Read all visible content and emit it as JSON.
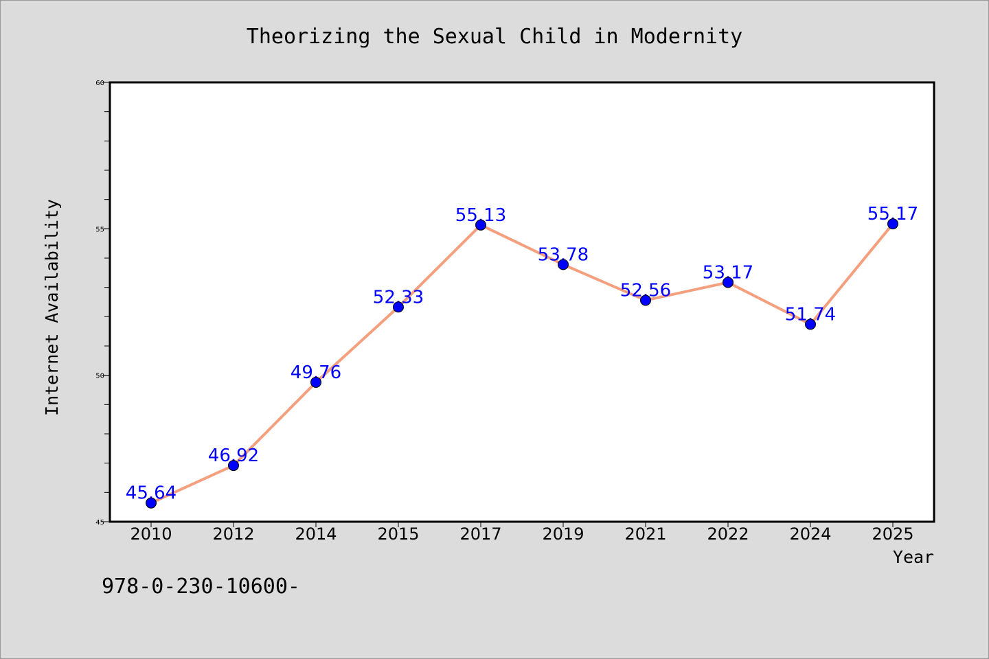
{
  "chart_data": {
    "type": "line",
    "title": "Theorizing the Sexual Child in Modernity",
    "xlabel": "Year",
    "ylabel": "Internet Availability",
    "categories": [
      "2010",
      "2012",
      "2014",
      "2015",
      "2017",
      "2019",
      "2021",
      "2022",
      "2024",
      "2025"
    ],
    "values": [
      45.64,
      46.92,
      49.76,
      52.33,
      55.13,
      53.78,
      52.56,
      53.17,
      51.74,
      55.17
    ],
    "data_labels": [
      "45.64",
      "46.92",
      "49.76",
      "52.33",
      "55.13",
      "53.78",
      "52.56",
      "53.17",
      "51.74",
      "55.17"
    ],
    "ylim": [
      45,
      60
    ],
    "yticks": [
      "45",
      "50",
      "55",
      "60"
    ],
    "grid": false,
    "line_color": "#f4a07e",
    "marker_color": "#0000ff",
    "label_color": "#0000ff"
  },
  "footer_text": "978-0-230-10600-"
}
